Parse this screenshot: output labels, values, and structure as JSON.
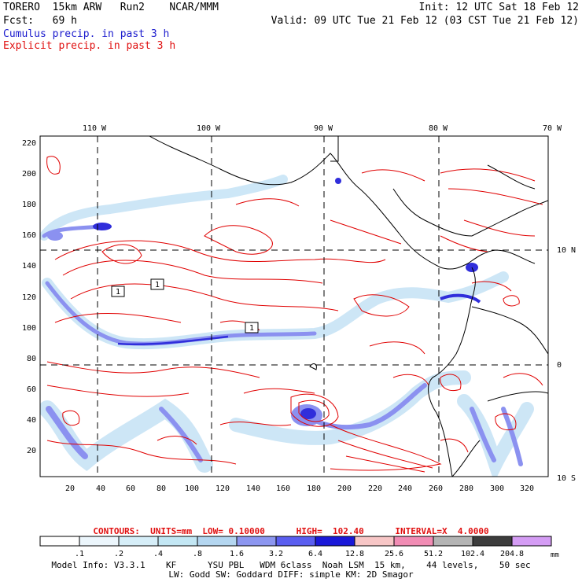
{
  "header": {
    "line1_left": "TORERO  15km ARW   Run2    NCAR/MMM",
    "line1_right": "Init: 12 UTC Sat 18 Feb 12",
    "line2_left": "Fcst:   69 h",
    "line2_right": "Valid: 09 UTC Tue 21 Feb 12 (03 CST Tue 21 Feb 12)",
    "line3": "Cumulus precip. in past 3 h",
    "line4": "Explicit precip. in past 3 h"
  },
  "map": {
    "lon_labels": [
      "110 W",
      "100 W",
      "90 W",
      "80 W",
      "70 W"
    ],
    "lat_labels": [
      "10 N",
      "0",
      "10 S"
    ],
    "y_ticks": [
      "220",
      "200",
      "180",
      "160",
      "140",
      "120",
      "100",
      "80",
      "60",
      "40",
      "20"
    ],
    "x_ticks": [
      "20",
      "40",
      "60",
      "80",
      "100",
      "120",
      "140",
      "160",
      "180",
      "200",
      "220",
      "240",
      "260",
      "280",
      "300",
      "320"
    ],
    "contour_marks": [
      "1",
      "1",
      "1"
    ],
    "colors": {
      "contour": "#e00000",
      "coast": "#000000",
      "cumulus_light": "#c8e4f6",
      "cumulus_mid": "#7f86ef",
      "cumulus_dark": "#1a18d8"
    }
  },
  "contours_line": "CONTOURS:  UNITS=mm  LOW= 0.10000      HIGH=  102.40      INTERVAL=X  4.0000",
  "colorbar": {
    "labels": [
      ".1",
      ".2",
      ".4",
      ".8",
      "1.6",
      "3.2",
      "6.4",
      "12.8",
      "25.6",
      "51.2",
      "102.4",
      "204.8"
    ],
    "unit": "mm",
    "colors": [
      "#ffffff",
      "#ecf6fc",
      "#d6eef8",
      "#c3e7f4",
      "#b4d6f0",
      "#8c96f0",
      "#5a5ef0",
      "#1a18d8",
      "#f7c6c6",
      "#f18cb4",
      "#b4b4b4",
      "#3c3c3c",
      "#d49cf4"
    ]
  },
  "model_info": {
    "line1": "Model Info: V3.3.1    KF      YSU PBL   WDM 6class  Noah LSM  15 km,    44 levels,    50 sec",
    "line2": "LW: Godd SW: Goddard DIFF: simple KM: 2D Smagor"
  }
}
